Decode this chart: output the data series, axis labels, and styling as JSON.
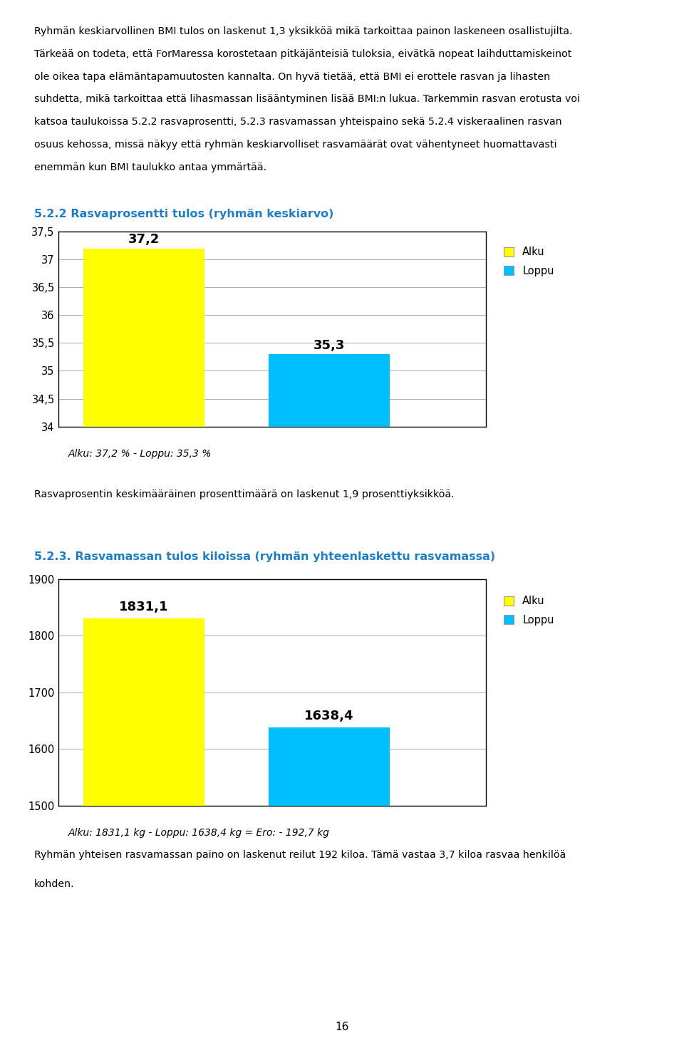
{
  "page_text_top": [
    "Ryhmän keskiarvollinen BMI tulos on laskenut 1,3 yksikköä mikä tarkoittaa painon laskeneen osallistujilta.",
    "Tärkeää on todeta, että ForMaressa korostetaan pitkäjänteisiä tuloksia, eivätkä nopeat laihduttamiskeinot",
    "ole oikea tapa elämäntapamuutosten kannalta. On hyvä tietää, että BMI ei erottele rasvan ja lihasten",
    "suhdetta, mikä tarkoittaa että lihasmassan lisääntyminen lisää BMI:n lukua. Tarkemmin rasvan erotusta voi",
    "katsoa taulukoissa 5.2.2 rasvaprosentti, 5.2.3 rasvamassan yhteispaino sekä 5.2.4 viskeraalinen rasvan",
    "osuus kehossa, missä näkyy että ryhmän keskiarvolliset rasvamäärät ovat vähentyneet huomattavasti",
    "enemmän kun BMI taulukko antaa ymmärtää."
  ],
  "chart1_title": "5.2.2 Rasvaprosentti tulos (ryhmän keskiarvo)",
  "chart1_title_color": "#1F7EC2",
  "chart1_values": [
    37.2,
    35.3
  ],
  "chart1_colors": [
    "#FFFF00",
    "#00BFFF"
  ],
  "chart1_ylim": [
    34.0,
    37.5
  ],
  "chart1_yticks": [
    34.0,
    34.5,
    35.0,
    35.5,
    36.0,
    36.5,
    37.0,
    37.5
  ],
  "chart1_ytick_labels": [
    "34",
    "34,5",
    "35",
    "35,5",
    "36",
    "36,5",
    "37",
    "37,5"
  ],
  "chart1_caption": "Alku: 37,2 % - Loppu: 35,3 %",
  "chart1_text_below": "Rasvaprosentin keskimääräinen prosenttimäärä on laskenut 1,9 prosenttiyksikköä.",
  "chart2_title": "5.2.3. Rasvamassan tulos kiloissa (ryhmän yhteenlaskettu rasvamassa)",
  "chart2_title_color": "#1F7EC2",
  "chart2_values": [
    1831.1,
    1638.4
  ],
  "chart2_colors": [
    "#FFFF00",
    "#00BFFF"
  ],
  "chart2_ylim": [
    1500,
    1900
  ],
  "chart2_yticks": [
    1500,
    1600,
    1700,
    1800,
    1900
  ],
  "chart2_ytick_labels": [
    "1500",
    "1600",
    "1700",
    "1800",
    "1900"
  ],
  "chart2_caption": "Alku: 1831,1 kg - Loppu: 1638,4 kg = Ero: - 192,7 kg",
  "chart2_text_below1": "Ryhmän yhteisen rasvamassan paino on laskenut reilut 192 kiloa. Tämä vastaa 3,7 kiloa rasvaa henkilöä",
  "chart2_text_below2": "kohden.",
  "page_number": "16",
  "bar_positions": [
    1.0,
    2.3
  ],
  "bar_width": 0.85,
  "legend_labels": [
    "Alku",
    "Loppu"
  ],
  "legend_colors": [
    "#FFFF00",
    "#00BFFF"
  ],
  "grid_color": "#AAAAAA",
  "border_color": "#000000",
  "background_color": "#FFFFFF",
  "text_color": "#000000",
  "chart1_bar_labels": [
    "37,2",
    "35,3"
  ],
  "chart2_bar_labels": [
    "1831,1",
    "1638,4"
  ]
}
